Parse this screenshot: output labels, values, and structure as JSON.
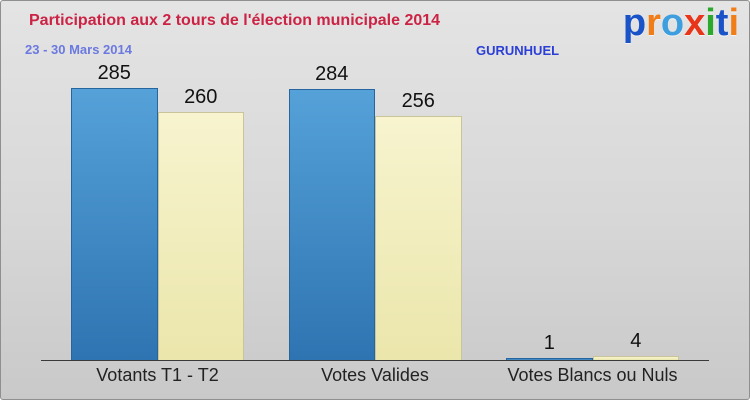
{
  "chart_data": {
    "type": "bar",
    "title": "Participation aux 2 tours de l'élection municipale 2014",
    "subtitle": "23 - 30 Mars 2014",
    "commune": "GURUNHUEL",
    "categories": [
      "Votants T1 - T2",
      "Votes Valides",
      "Votes Blancs ou Nuls"
    ],
    "series": [
      {
        "key": "t1",
        "values": [
          285,
          284,
          1
        ],
        "color_top": "#55a1d8",
        "color_bottom": "#2e74b2",
        "border_color": "#26659e"
      },
      {
        "key": "t2",
        "values": [
          260,
          256,
          4
        ],
        "color_top": "#f7f4cf",
        "color_bottom": "#ebe6ab",
        "border_color": "#c9c499"
      }
    ],
    "xlabel": "",
    "ylabel": "",
    "ylim": [
      0,
      300
    ],
    "grid": false,
    "legend": "none"
  },
  "logo": {
    "text": "proxiti",
    "letters": [
      {
        "ch": "p",
        "color": "#1a52c8"
      },
      {
        "ch": "r",
        "color": "#f07d18"
      },
      {
        "ch": "o",
        "color": "#3f9ede"
      },
      {
        "ch": "x",
        "color": "#e83418"
      },
      {
        "ch": "i",
        "color": "#2ca82c"
      },
      {
        "ch": "t",
        "color": "#1a52c8"
      },
      {
        "ch": "i",
        "color": "#f07d18"
      }
    ]
  },
  "colors": {
    "title": "#cc2244",
    "subtitle": "#6b79e0",
    "commune": "#2b3fd6",
    "axis": "#3a3a3a",
    "value_label": "#111111",
    "category_label": "#222222"
  }
}
